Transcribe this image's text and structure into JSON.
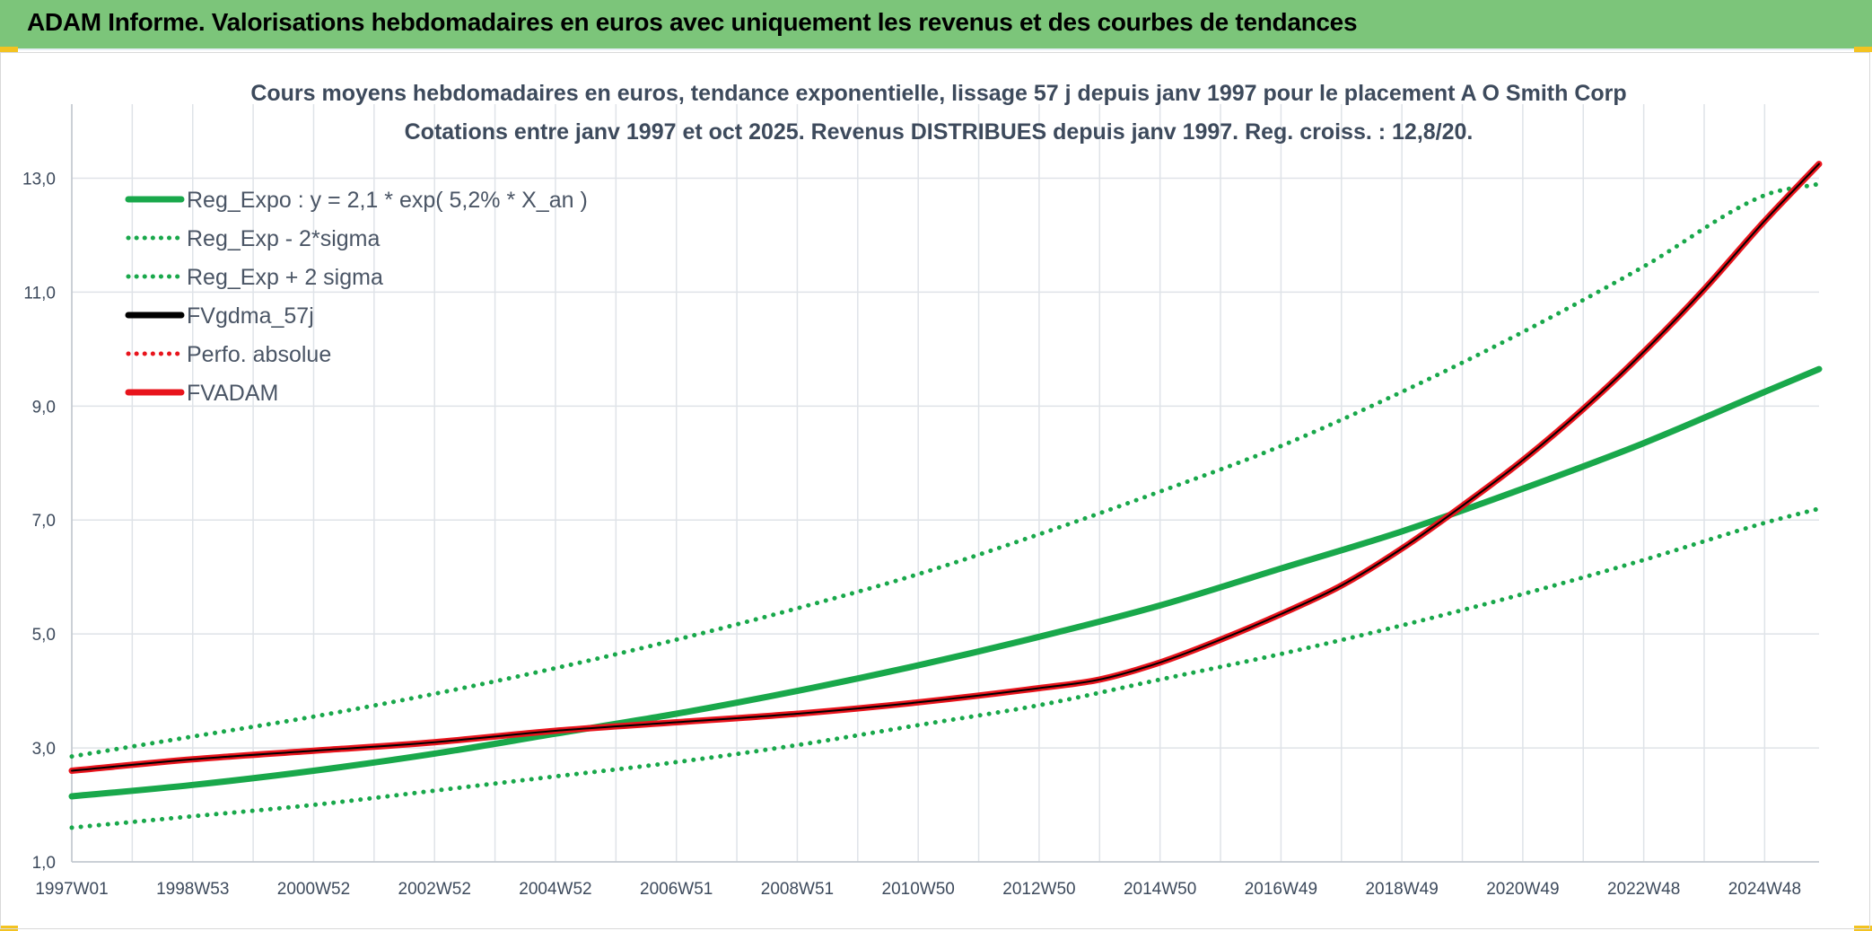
{
  "header": {
    "title": "ADAM Informe. Valorisations hebdomadaires en euros avec uniquement les revenus et des courbes de tendances"
  },
  "colors": {
    "header_bg": "#7cc57a",
    "trend": "#19a84b",
    "fvadam": "#e8141c",
    "fvgdma": "#000000",
    "perfo": "#e8141c",
    "grid": "#dfe3e8",
    "text": "#3d4a5c"
  },
  "chart_data": {
    "type": "line",
    "title": "Cours moyens hebdomadaires en euros, tendance exponentielle, lissage 57 j depuis janv 1997 pour le placement A O Smith Corp",
    "subtitle": "Cotations entre janv 1997 et oct 2025. Revenus DISTRIBUES depuis janv 1997. Reg. croiss. : 12,8/20.",
    "xlabel": "",
    "ylabel": "",
    "x_tick_labels": [
      "1997W01",
      "1998W53",
      "2000W52",
      "2002W52",
      "2004W52",
      "2006W51",
      "2008W51",
      "2010W50",
      "2012W50",
      "2014W50",
      "2016W49",
      "2018W49",
      "2020W49",
      "2022W48",
      "2024W48"
    ],
    "x_ticks_year": [
      1997.0,
      1999.0,
      2001.0,
      2003.0,
      2005.0,
      2007.0,
      2009.0,
      2011.0,
      2013.0,
      2015.0,
      2017.0,
      2019.0,
      2021.0,
      2023.0,
      2025.0
    ],
    "xlim": [
      1997.0,
      2025.9
    ],
    "y_tick_labels": [
      "1,0",
      "3,0",
      "5,0",
      "7,0",
      "9,0",
      "11,0",
      "13,0"
    ],
    "y_ticks": [
      1,
      3,
      5,
      7,
      9,
      11,
      13
    ],
    "ylim": [
      1,
      14.3
    ],
    "grid": true,
    "legend_position": "top-left",
    "legend": [
      {
        "label": "Reg_Expo : y = 2,1 * exp( 5,2% *  X_an )",
        "color": "#19a84b",
        "style": "solid"
      },
      {
        "label": "Reg_Exp - 2*sigma",
        "color": "#19a84b",
        "style": "dotted"
      },
      {
        "label": "Reg_Exp + 2 sigma",
        "color": "#19a84b",
        "style": "dotted"
      },
      {
        "label": "FVgdma_57j",
        "color": "#000000",
        "style": "solid"
      },
      {
        "label": "Perfo. absolue",
        "color": "#e8141c",
        "style": "dotted"
      },
      {
        "label": "FVADAM",
        "color": "#e8141c",
        "style": "solid"
      }
    ],
    "series": [
      {
        "name": "Reg_Expo : y = 2,1 * exp( 5,2% *  X_an )",
        "color": "#19a84b",
        "style": "solid",
        "x": [
          1997.0,
          1999.0,
          2001.0,
          2003.0,
          2005.0,
          2007.0,
          2009.0,
          2011.0,
          2013.0,
          2015.0,
          2017.0,
          2019.0,
          2021.0,
          2023.0,
          2025.0,
          2025.9
        ],
        "y": [
          2.15,
          2.35,
          2.6,
          2.9,
          3.25,
          3.6,
          4.0,
          4.45,
          4.95,
          5.5,
          6.15,
          6.8,
          7.55,
          8.35,
          9.25,
          9.65
        ]
      },
      {
        "name": "Reg_Exp - 2*sigma",
        "color": "#19a84b",
        "style": "dotted",
        "x": [
          1997.0,
          1999.0,
          2001.0,
          2003.0,
          2005.0,
          2007.0,
          2009.0,
          2011.0,
          2013.0,
          2015.0,
          2017.0,
          2019.0,
          2021.0,
          2023.0,
          2025.0,
          2025.9
        ],
        "y": [
          1.6,
          1.8,
          2.0,
          2.25,
          2.5,
          2.75,
          3.05,
          3.4,
          3.75,
          4.2,
          4.65,
          5.15,
          5.7,
          6.3,
          6.95,
          7.2
        ]
      },
      {
        "name": "Reg_Exp + 2 sigma",
        "color": "#19a84b",
        "style": "dotted",
        "x": [
          1997.0,
          1999.0,
          2001.0,
          2003.0,
          2005.0,
          2007.0,
          2009.0,
          2011.0,
          2013.0,
          2015.0,
          2017.0,
          2019.0,
          2021.0,
          2023.0,
          2025.0,
          2025.9
        ],
        "y": [
          2.85,
          3.2,
          3.55,
          3.95,
          4.4,
          4.9,
          5.45,
          6.05,
          6.75,
          7.5,
          8.3,
          9.25,
          10.3,
          11.45,
          12.7,
          12.9
        ]
      },
      {
        "name": "FVADAM",
        "color": "#e8141c",
        "style": "solid",
        "x": [
          1997.0,
          1999.0,
          2001.0,
          2003.0,
          2005.0,
          2007.0,
          2009.0,
          2011.0,
          2013.0,
          2014.0,
          2015.0,
          2016.0,
          2017.0,
          2018.0,
          2019.0,
          2020.0,
          2021.0,
          2022.0,
          2023.0,
          2024.0,
          2025.0,
          2025.9
        ],
        "y": [
          2.6,
          2.8,
          2.95,
          3.1,
          3.3,
          3.45,
          3.6,
          3.8,
          4.05,
          4.2,
          4.5,
          4.9,
          5.35,
          5.85,
          6.5,
          7.25,
          8.05,
          8.95,
          9.95,
          11.05,
          12.25,
          13.25
        ]
      },
      {
        "name": "FVgdma_57j",
        "color": "#000000",
        "style": "solid",
        "x": [
          1997.0,
          1999.0,
          2001.0,
          2003.0,
          2005.0,
          2007.0,
          2009.0,
          2011.0,
          2013.0,
          2014.0,
          2015.0,
          2016.0,
          2017.0,
          2018.0,
          2019.0,
          2020.0,
          2021.0,
          2022.0,
          2023.0,
          2024.0,
          2025.0,
          2025.9
        ],
        "y": [
          2.6,
          2.8,
          2.95,
          3.1,
          3.3,
          3.45,
          3.6,
          3.8,
          4.05,
          4.2,
          4.5,
          4.9,
          5.35,
          5.85,
          6.5,
          7.25,
          8.05,
          8.95,
          9.95,
          11.05,
          12.25,
          13.25
        ]
      }
    ]
  }
}
